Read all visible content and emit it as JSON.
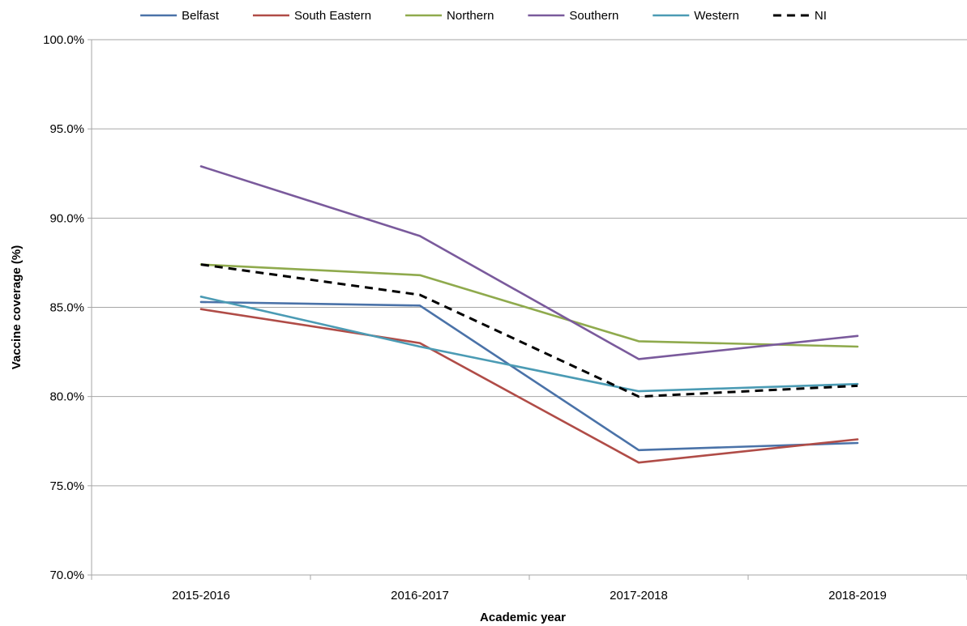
{
  "chart_data": {
    "type": "line",
    "xlabel": "Academic year",
    "ylabel": "Vaccine coverage (%)",
    "categories": [
      "2015-2016",
      "2016-2017",
      "2017-2018",
      "2018-2019"
    ],
    "ylim": [
      70,
      100
    ],
    "ytick_step": 5,
    "ytick_labels": [
      "70.0%",
      "75.0%",
      "80.0%",
      "85.0%",
      "90.0%",
      "95.0%",
      "100.0%"
    ],
    "grid": true,
    "legend_position": "top",
    "series": [
      {
        "name": "Belfast",
        "color": "#4a72a8",
        "dashed": false,
        "values": [
          85.3,
          85.1,
          77.0,
          77.4
        ]
      },
      {
        "name": "South Eastern",
        "color": "#b04c47",
        "dashed": false,
        "values": [
          84.9,
          83.0,
          76.3,
          77.6
        ]
      },
      {
        "name": "Northern",
        "color": "#8faa4d",
        "dashed": false,
        "values": [
          87.4,
          86.8,
          83.1,
          82.8
        ]
      },
      {
        "name": "Southern",
        "color": "#7a5a9c",
        "dashed": false,
        "values": [
          92.9,
          89.0,
          82.1,
          83.4
        ]
      },
      {
        "name": "Western",
        "color": "#4b9bb4",
        "dashed": false,
        "values": [
          85.6,
          82.8,
          80.3,
          80.7
        ]
      },
      {
        "name": "NI",
        "color": "#000000",
        "dashed": true,
        "values": [
          87.4,
          85.7,
          80.0,
          80.6
        ]
      }
    ]
  }
}
